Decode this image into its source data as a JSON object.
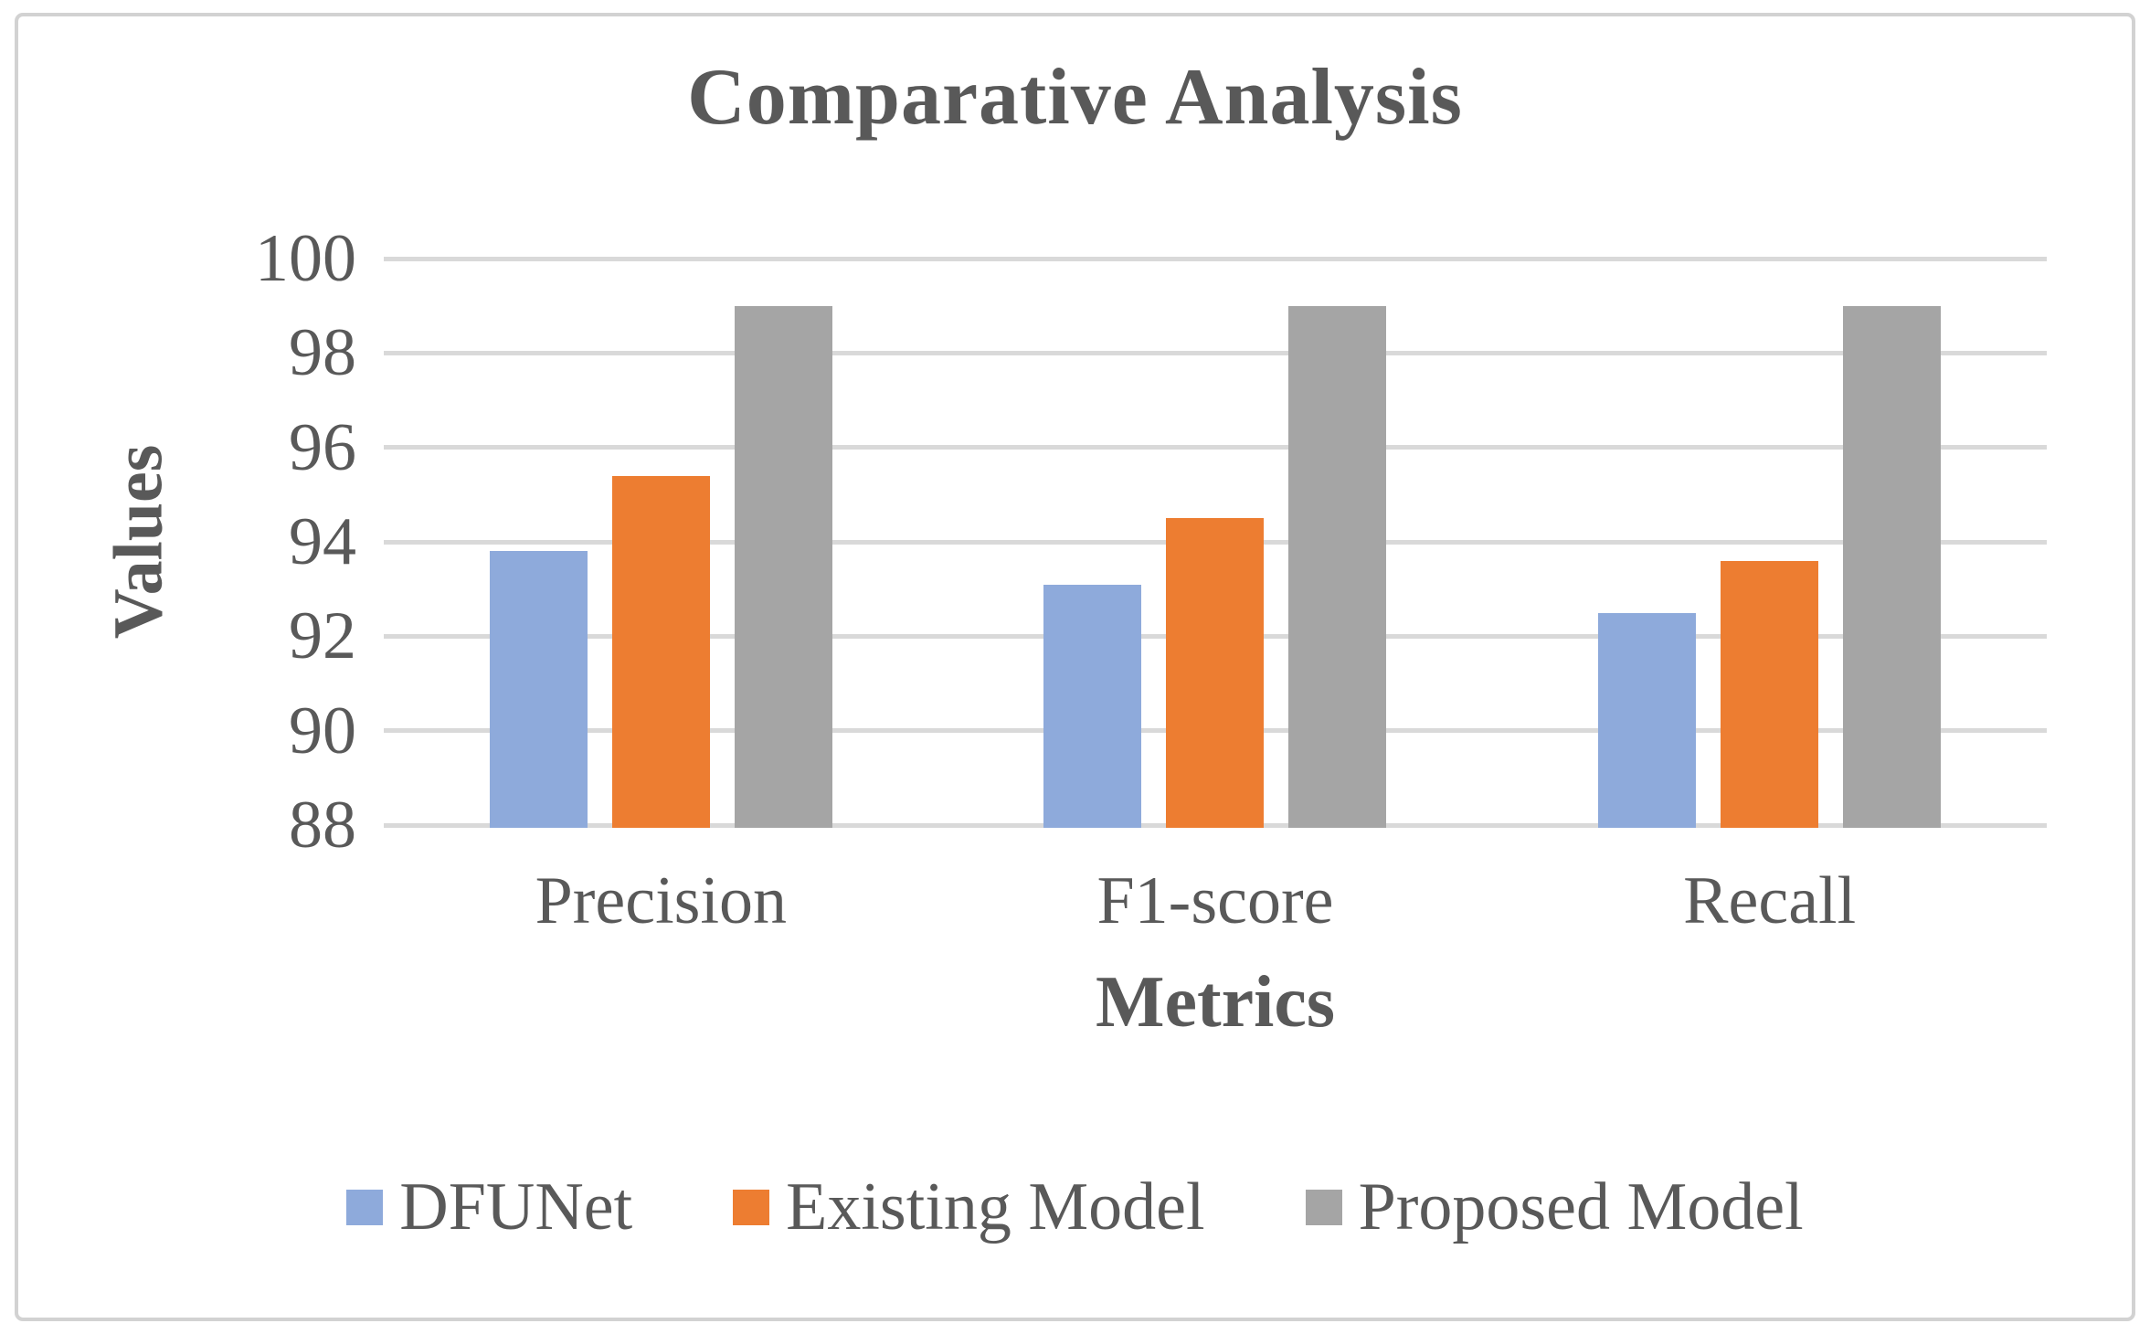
{
  "chart_data": {
    "type": "bar",
    "title": "Comparative Analysis",
    "xlabel": "Metrics",
    "ylabel": "Values",
    "categories": [
      "Precision",
      "F1-score",
      "Recall"
    ],
    "series": [
      {
        "name": "DFUNet",
        "color": "#8EAADB",
        "values": [
          93.8,
          93.1,
          92.5
        ]
      },
      {
        "name": "Existing Model",
        "color": "#ED7D31",
        "values": [
          95.4,
          94.5,
          93.6
        ]
      },
      {
        "name": "Proposed Model",
        "color": "#A5A5A5",
        "values": [
          99.0,
          99.0,
          99.0
        ]
      }
    ],
    "ylim": [
      88,
      100
    ],
    "yticks": [
      88,
      90,
      92,
      94,
      96,
      98,
      100
    ],
    "grid": "horizontal",
    "gridline_color": "#d9d9d9",
    "text_color": "#595959",
    "frame_color": "#d2d2d2",
    "legend_position": "bottom"
  }
}
